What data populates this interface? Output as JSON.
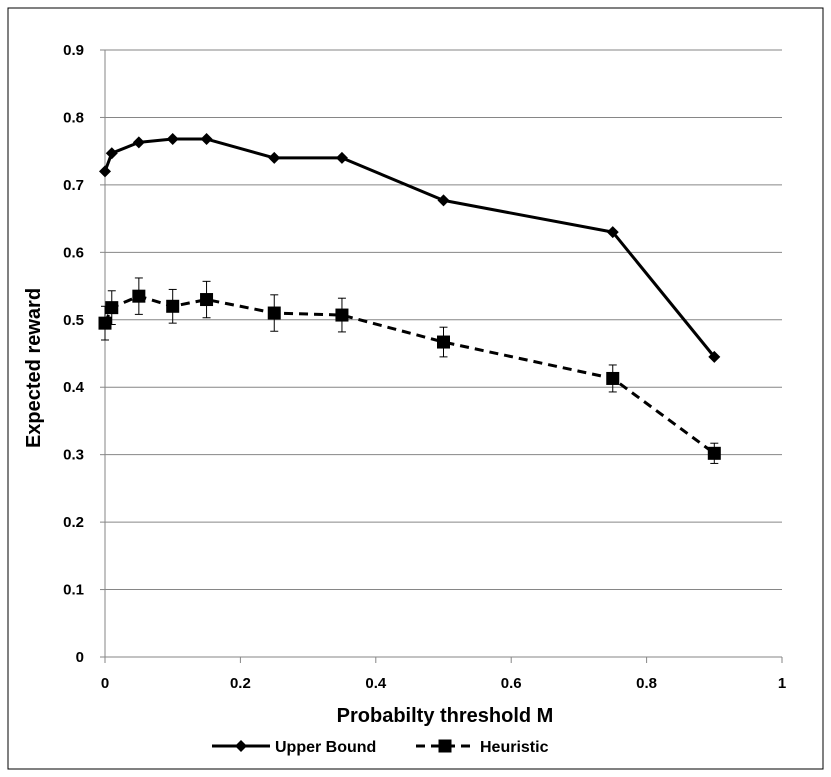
{
  "chart_data": {
    "type": "line",
    "xlabel": "Probabilty threshold M",
    "ylabel": "Expected reward",
    "xlim": [
      0,
      1
    ],
    "ylim": [
      0,
      0.9
    ],
    "xticks": [
      "0",
      "0.2",
      "0.4",
      "0.6",
      "0.8",
      "1"
    ],
    "yticks": [
      "0",
      "0.1",
      "0.2",
      "0.3",
      "0.4",
      "0.5",
      "0.6",
      "0.7",
      "0.8",
      "0.9"
    ],
    "grid": "horizontal",
    "legend_position": "bottom",
    "series": [
      {
        "name": "Upper Bound",
        "style": "solid",
        "marker": "diamond",
        "color": "#000000",
        "x": [
          0,
          0.01,
          0.05,
          0.1,
          0.15,
          0.25,
          0.35,
          0.5,
          0.75,
          0.9
        ],
        "values": [
          0.72,
          0.747,
          0.763,
          0.768,
          0.768,
          0.74,
          0.74,
          0.677,
          0.63,
          0.445
        ]
      },
      {
        "name": "Heuristic",
        "style": "dashed",
        "marker": "square",
        "color": "#000000",
        "x": [
          0,
          0.01,
          0.05,
          0.1,
          0.15,
          0.25,
          0.35,
          0.5,
          0.75,
          0.9
        ],
        "values": [
          0.495,
          0.518,
          0.535,
          0.52,
          0.53,
          0.51,
          0.507,
          0.467,
          0.413,
          0.302
        ],
        "error": [
          0.025,
          0.025,
          0.027,
          0.025,
          0.027,
          0.027,
          0.025,
          0.022,
          0.02,
          0.015
        ]
      }
    ]
  }
}
